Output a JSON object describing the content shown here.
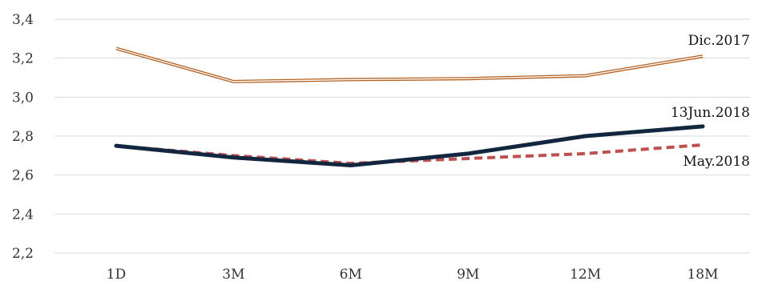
{
  "chart_data": {
    "type": "line",
    "title": "",
    "xlabel": "",
    "ylabel": "",
    "categories": [
      "1D",
      "3M",
      "6M",
      "9M",
      "12M",
      "18M"
    ],
    "ylim": [
      2.2,
      3.4
    ],
    "yticks": [
      "2,2",
      "2,4",
      "2,6",
      "2,8",
      "3,0",
      "3,2",
      "3,4"
    ],
    "ytick_values": [
      2.2,
      2.4,
      2.6,
      2.8,
      3.0,
      3.2,
      3.4
    ],
    "grid": true,
    "legend": "none",
    "series": [
      {
        "name": "Dic.2017",
        "values": [
          3.25,
          3.08,
          3.09,
          3.095,
          3.11,
          3.21
        ],
        "color": "#b45f1e",
        "style": "double"
      },
      {
        "name": "13Jun.2018",
        "values": [
          2.75,
          2.69,
          2.65,
          2.71,
          2.8,
          2.85
        ],
        "color": "#13263f",
        "style": "solid"
      },
      {
        "name": "May.2018",
        "values": [
          2.75,
          2.7,
          2.66,
          2.685,
          2.71,
          2.755
        ],
        "color": "#c0504d",
        "style": "dashed"
      }
    ]
  }
}
